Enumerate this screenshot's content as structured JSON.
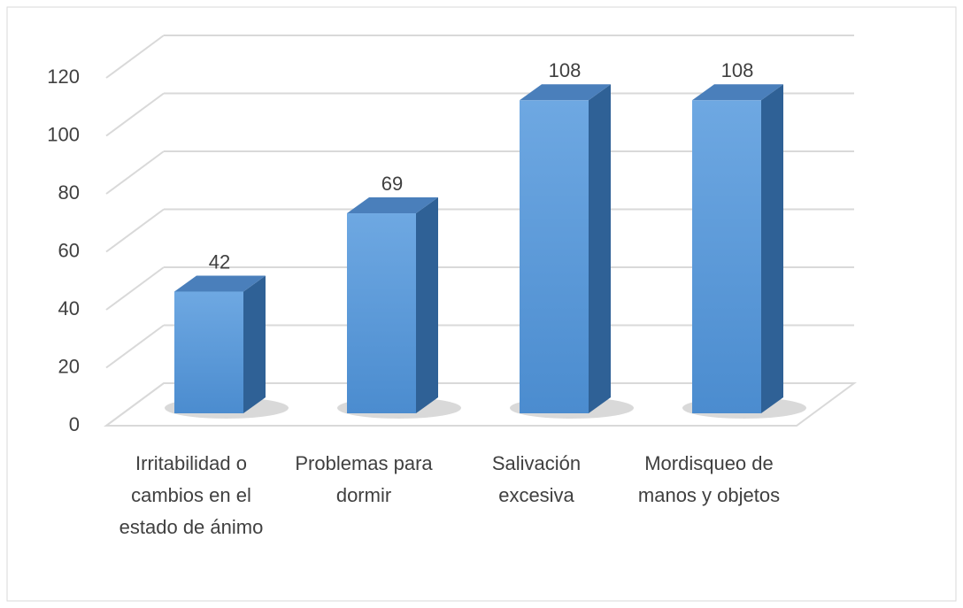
{
  "chart_data": {
    "type": "bar3d",
    "categories": [
      "Irritabilidad o cambios en el estado de ánimo",
      "Problemas para dormir",
      "Salivación excesiva",
      "Mordisqueo de manos y objetos"
    ],
    "values": [
      42,
      69,
      108,
      108
    ],
    "color": "#5b9bd5",
    "ylim": [
      0,
      120
    ],
    "yticks": [
      0,
      20,
      40,
      60,
      80,
      100,
      120
    ],
    "grid": true
  }
}
